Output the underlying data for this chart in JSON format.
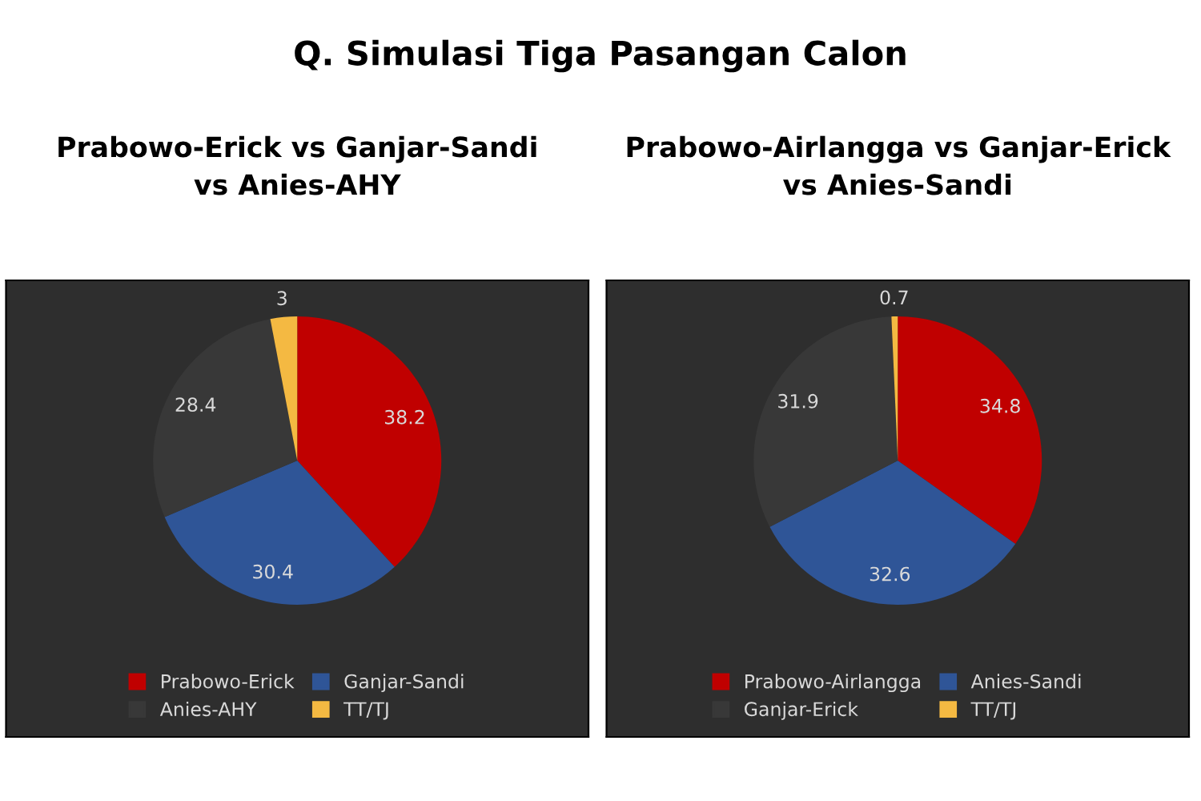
{
  "chart_data": [
    {
      "type": "pie",
      "title": "Prabowo-Erick vs Ganjar-Sandi\nvs Anies-AHY",
      "annotations": [
        "Q. Simulasi Tiga Pasangan Calon"
      ],
      "categories": [
        "Prabowo-Erick",
        "Ganjar-Sandi",
        "Anies-AHY",
        "TT/TJ"
      ],
      "values": [
        38.2,
        30.4,
        28.4,
        3
      ],
      "colors": [
        "#c00000",
        "#2f5597",
        "#383838",
        "#f4b942"
      ],
      "data_labels": true,
      "legend": "bottom"
    },
    {
      "type": "pie",
      "title": "Prabowo-Airlangga vs Ganjar-Erick\nvs Anies-Sandi",
      "categories": [
        "Prabowo-Airlangga",
        "Anies-Sandi",
        "Ganjar-Erick",
        "TT/TJ"
      ],
      "values": [
        34.8,
        32.6,
        31.9,
        0.7
      ],
      "colors": [
        "#c00000",
        "#2f5597",
        "#383838",
        "#f4b942"
      ],
      "data_labels": true,
      "legend": "bottom"
    }
  ]
}
